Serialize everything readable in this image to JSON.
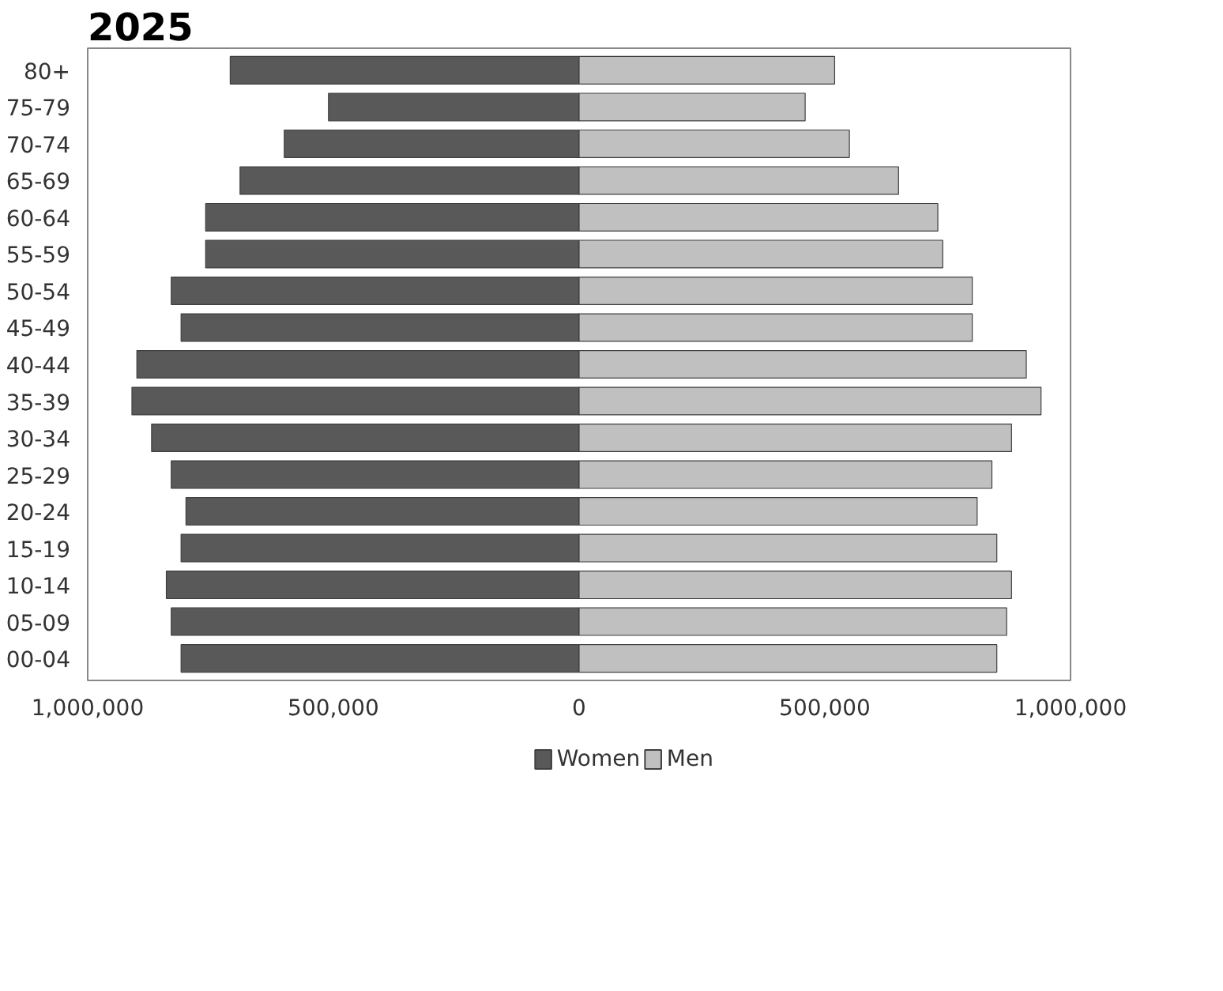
{
  "chart_data": {
    "type": "bar",
    "orientation": "horizontal",
    "stacked": true,
    "title": "2025",
    "categories": [
      "80+",
      "75-79",
      "70-74",
      "65-69",
      "60-64",
      "55-59",
      "50-54",
      "45-49",
      "40-44",
      "35-39",
      "30-34",
      "25-29",
      "20-24",
      "15-19",
      "10-14",
      "05-09",
      "00-04"
    ],
    "series": [
      {
        "name": "Women",
        "color": "#595959",
        "values": [
          -710000,
          -510000,
          -600000,
          -690000,
          -760000,
          -760000,
          -830000,
          -810000,
          -900000,
          -910000,
          -870000,
          -830000,
          -800000,
          -810000,
          -840000,
          -830000,
          -810000
        ]
      },
      {
        "name": "Men",
        "color": "#c0c0c0",
        "values": [
          520000,
          460000,
          550000,
          650000,
          730000,
          740000,
          800000,
          800000,
          910000,
          940000,
          880000,
          840000,
          810000,
          850000,
          880000,
          870000,
          850000
        ]
      }
    ],
    "xlim": [
      -1000000,
      1000000
    ],
    "xticks": [
      {
        "value": -1000000,
        "label": "1,000,000"
      },
      {
        "value": -500000,
        "label": "500,000"
      },
      0,
      {
        "value": 500000,
        "label": "500,000"
      },
      {
        "value": 1000000,
        "label": "1,000,000"
      }
    ],
    "grid": false,
    "legend": "bottom"
  }
}
